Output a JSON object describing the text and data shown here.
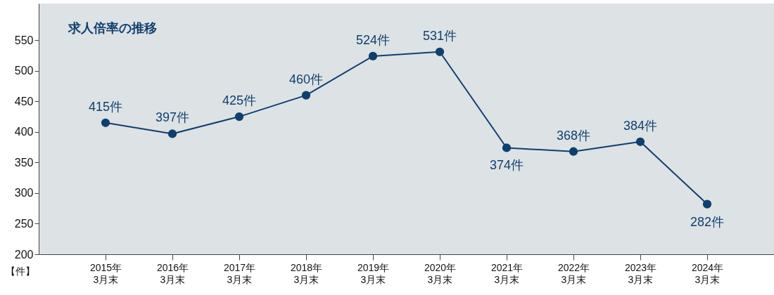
{
  "chart_data": {
    "type": "line",
    "title": "求人倍率の推移",
    "ylabel": "【件】",
    "categories": [
      "2015年\n3月末",
      "2016年\n3月末",
      "2017年\n3月末",
      "2018年\n3月末",
      "2019年\n3月末",
      "2020年\n3月末",
      "2021年\n3月末",
      "2022年\n3月末",
      "2023年\n3月末",
      "2024年\n3月末"
    ],
    "series": [
      {
        "color": "#0f3f6e",
        "values": [
          415,
          397,
          425,
          460,
          524,
          531,
          374,
          368,
          384,
          282
        ],
        "value_labels": [
          "415件",
          "397件",
          "425件",
          "460件",
          "524件",
          "531件",
          "374件",
          "368件",
          "384件",
          "282件"
        ]
      }
    ],
    "ylim": [
      200,
      610
    ],
    "yticks": [
      200,
      250,
      300,
      350,
      400,
      450,
      500,
      550
    ],
    "grid": false,
    "legend": false,
    "marker": "circle",
    "line_style": "solid"
  }
}
